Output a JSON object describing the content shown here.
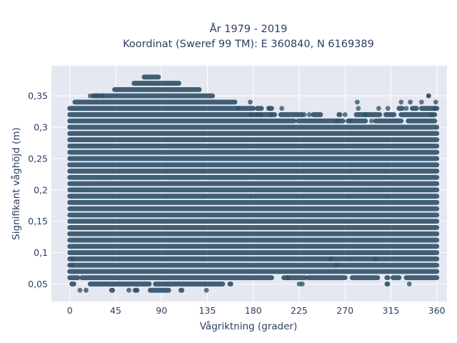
{
  "chart_data": {
    "type": "scatter",
    "title_line1": "År 1979 - 2019",
    "title_line2": "Koordinat (Sweref 99 TM): E 360840, N 6169389",
    "xlabel": "Vågriktning (grader)",
    "ylabel": "Signifikant våghöjd (m)",
    "xlim": [
      -18,
      370
    ],
    "ylim": [
      0.022,
      0.398
    ],
    "x_ticks": [
      0,
      45,
      90,
      135,
      180,
      225,
      270,
      315,
      360
    ],
    "x_tick_labels": [
      "0",
      "45",
      "90",
      "135",
      "180",
      "225",
      "270",
      "315",
      "360"
    ],
    "y_ticks": [
      0.05,
      0.1,
      0.15,
      0.2,
      0.25,
      0.3,
      0.35
    ],
    "y_tick_labels": [
      "0,05",
      "0,1",
      "0,15",
      "0,2",
      "0,25",
      "0,3",
      "0,35"
    ],
    "grid": true,
    "marker_color": "#2e5068",
    "plot_background": "#e5e8f0",
    "series": [
      {
        "bands": [
          {
            "y": 0.04,
            "segments": [
              [
                16,
                16
              ],
              [
                41,
                42
              ],
              [
                58,
                58
              ],
              [
                65,
                66
              ],
              [
                79,
                97
              ],
              [
                109,
                110
              ],
              [
                134,
                134
              ]
            ]
          },
          {
            "y": 0.05,
            "segments": [
              [
                2,
                4
              ],
              [
                20,
                78
              ],
              [
                84,
                150
              ],
              [
                157,
                158
              ],
              [
                228,
                228
              ],
              [
                311,
                311
              ],
              [
                333,
                333
              ]
            ]
          },
          {
            "y": 0.06,
            "segments": [
              [
                0,
                8
              ],
              [
                12,
                198
              ],
              [
                210,
                231
              ],
              [
                234,
                270
              ],
              [
                277,
                302
              ],
              [
                311,
                312
              ],
              [
                317,
                323
              ],
              [
                330,
                360
              ]
            ]
          },
          {
            "y": 0.07,
            "segments": [
              [
                0,
                360
              ]
            ]
          },
          {
            "y": 0.08,
            "segments": [
              [
                0,
                360
              ]
            ]
          },
          {
            "y": 0.09,
            "segments": [
              [
                0,
                360
              ]
            ]
          },
          {
            "y": 0.1,
            "segments": [
              [
                0,
                360
              ]
            ]
          },
          {
            "y": 0.11,
            "segments": [
              [
                0,
                360
              ]
            ]
          },
          {
            "y": 0.12,
            "segments": [
              [
                0,
                360
              ]
            ]
          },
          {
            "y": 0.13,
            "segments": [
              [
                0,
                360
              ]
            ]
          },
          {
            "y": 0.14,
            "segments": [
              [
                0,
                360
              ]
            ]
          },
          {
            "y": 0.15,
            "segments": [
              [
                0,
                360
              ]
            ]
          },
          {
            "y": 0.16,
            "segments": [
              [
                0,
                360
              ]
            ]
          },
          {
            "y": 0.17,
            "segments": [
              [
                0,
                360
              ]
            ]
          },
          {
            "y": 0.18,
            "segments": [
              [
                0,
                360
              ]
            ]
          },
          {
            "y": 0.19,
            "segments": [
              [
                0,
                360
              ]
            ]
          },
          {
            "y": 0.2,
            "segments": [
              [
                0,
                360
              ]
            ]
          },
          {
            "y": 0.21,
            "segments": [
              [
                0,
                360
              ]
            ]
          },
          {
            "y": 0.22,
            "segments": [
              [
                0,
                360
              ]
            ]
          },
          {
            "y": 0.23,
            "segments": [
              [
                0,
                360
              ]
            ]
          },
          {
            "y": 0.24,
            "segments": [
              [
                0,
                360
              ]
            ]
          },
          {
            "y": 0.25,
            "segments": [
              [
                0,
                360
              ]
            ]
          },
          {
            "y": 0.26,
            "segments": [
              [
                0,
                360
              ]
            ]
          },
          {
            "y": 0.27,
            "segments": [
              [
                0,
                360
              ]
            ]
          },
          {
            "y": 0.28,
            "segments": [
              [
                0,
                360
              ]
            ]
          },
          {
            "y": 0.29,
            "segments": [
              [
                0,
                360
              ]
            ]
          },
          {
            "y": 0.3,
            "segments": [
              [
                0,
                360
              ]
            ]
          },
          {
            "y": 0.31,
            "segments": [
              [
                0,
                220
              ],
              [
                224,
                268
              ],
              [
                273,
                290
              ],
              [
                300,
                325
              ],
              [
                332,
                358
              ]
            ]
          },
          {
            "y": 0.32,
            "segments": [
              [
                0,
                201
              ],
              [
                207,
                228
              ],
              [
                239,
                246
              ],
              [
                264,
                265
              ],
              [
                281,
                304
              ],
              [
                310,
                318
              ],
              [
                325,
                358
              ]
            ]
          },
          {
            "y": 0.33,
            "segments": [
              [
                0,
                180
              ],
              [
                184,
                188
              ],
              [
                196,
                198
              ],
              [
                323,
                326
              ],
              [
                336,
                340
              ],
              [
                345,
                360
              ]
            ]
          },
          {
            "y": 0.34,
            "segments": [
              [
                5,
                162
              ],
              [
                177,
                177
              ],
              [
                282,
                282
              ],
              [
                334,
                334
              ],
              [
                359,
                359
              ]
            ]
          },
          {
            "y": 0.35,
            "segments": [
              [
                23,
                140
              ],
              [
                352,
                352
              ]
            ]
          },
          {
            "y": 0.36,
            "segments": [
              [
                44,
                127
              ]
            ]
          },
          {
            "y": 0.37,
            "segments": [
              [
                63,
                107
              ]
            ]
          },
          {
            "y": 0.38,
            "segments": [
              [
                73,
                87
              ]
            ]
          }
        ],
        "loose_points": [
          [
            20,
            0.35
          ],
          [
            25,
            0.35
          ],
          [
            27,
            0.35
          ],
          [
            32,
            0.35
          ],
          [
            165,
            0.33
          ],
          [
            178,
            0.32
          ],
          [
            183,
            0.32
          ],
          [
            187,
            0.32
          ],
          [
            195,
            0.33
          ],
          [
            197,
            0.32
          ],
          [
            208,
            0.33
          ],
          [
            230,
            0.32
          ],
          [
            235,
            0.32
          ],
          [
            262,
            0.31
          ],
          [
            270,
            0.32
          ],
          [
            275,
            0.31
          ],
          [
            283,
            0.33
          ],
          [
            290,
            0.32
          ],
          [
            296,
            0.31
          ],
          [
            303,
            0.33
          ],
          [
            312,
            0.33
          ],
          [
            325,
            0.34
          ],
          [
            330,
            0.33
          ],
          [
            345,
            0.34
          ],
          [
            352,
            0.35
          ],
          [
            355,
            0.32
          ],
          [
            358,
            0.33
          ],
          [
            2,
            0.08
          ],
          [
            3,
            0.09
          ],
          [
            256,
            0.09
          ],
          [
            262,
            0.08
          ],
          [
            300,
            0.09
          ],
          [
            312,
            0.05
          ],
          [
            214,
            0.06
          ],
          [
            225,
            0.05
          ],
          [
            10,
            0.04
          ],
          [
            64,
            0.04
          ]
        ]
      }
    ]
  }
}
